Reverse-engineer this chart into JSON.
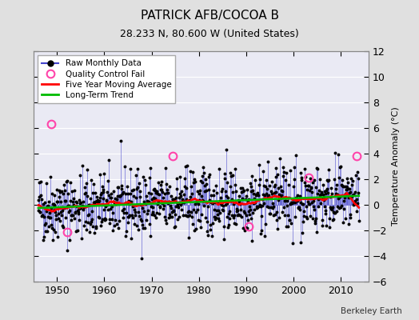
{
  "title": "PATRICK AFB/COCOA B",
  "subtitle": "28.233 N, 80.600 W (United States)",
  "ylabel": "Temperature Anomaly (°C)",
  "attribution": "Berkeley Earth",
  "xlim": [
    1945,
    2016
  ],
  "ylim": [
    -6,
    12
  ],
  "yticks": [
    -6,
    -4,
    -2,
    0,
    2,
    4,
    6,
    8,
    10,
    12
  ],
  "xticks": [
    1950,
    1960,
    1970,
    1980,
    1990,
    2000,
    2010
  ],
  "bg_color": "#e0e0e0",
  "plot_bg_color": "#eaeaf4",
  "raw_line_color": "#4444cc",
  "raw_dot_color": "#000000",
  "qc_fail_color": "#ff44aa",
  "moving_avg_color": "#ff0000",
  "trend_color": "#00bb00",
  "seed": 42,
  "n_years": 68,
  "start_year": 1946,
  "trend_slope": 0.014,
  "trend_intercept": -0.25,
  "noise_std": 1.3,
  "qc_fail_years": [
    1948.7,
    1952.2,
    1974.5,
    1990.5,
    2003.2,
    2013.5
  ],
  "qc_fail_values": [
    6.3,
    -2.1,
    3.8,
    -1.7,
    2.1,
    3.8
  ]
}
